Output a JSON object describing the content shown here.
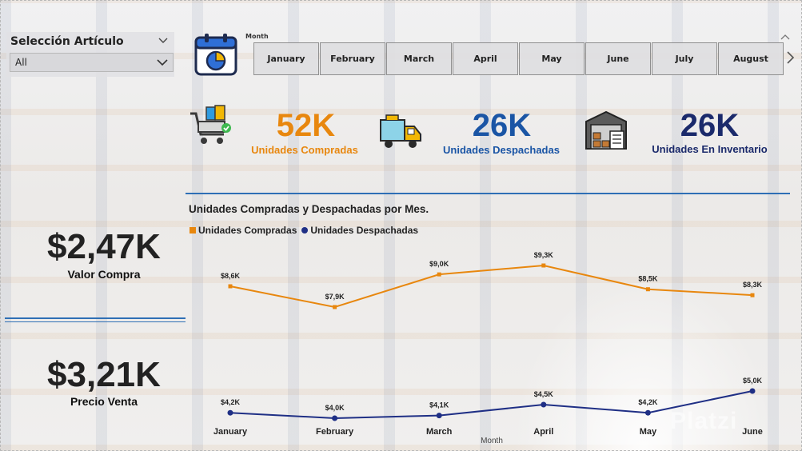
{
  "slicer": {
    "title": "Selección Artículo",
    "selected": "All"
  },
  "month_slicer": {
    "label": "Month",
    "months": [
      "January",
      "February",
      "March",
      "April",
      "May",
      "June",
      "July",
      "August"
    ]
  },
  "kpis": [
    {
      "value": "52K",
      "label": "Unidades Compradas",
      "color": "#e8870e",
      "icon": "shopping-cart-icon"
    },
    {
      "value": "26K",
      "label": "Unidades Despachadas",
      "color": "#1a55a5",
      "icon": "delivery-truck-icon"
    },
    {
      "value": "26K",
      "label": "Unidades En Inventario",
      "color": "#1b2a6b",
      "icon": "warehouse-inventory-icon"
    }
  ],
  "cards": {
    "valor_compra": {
      "value": "$2,47K",
      "label": "Valor Compra"
    },
    "precio_venta": {
      "value": "$3,21K",
      "label": "Precio Venta"
    }
  },
  "watermark": "Platzi",
  "chart_data": {
    "type": "line",
    "title": "Unidades Compradas y Despachadas por Mes.",
    "xlabel": "Month",
    "ylabel": "",
    "legend_position": "top-left",
    "grid": false,
    "categories": [
      "January",
      "February",
      "March",
      "April",
      "May",
      "June"
    ],
    "series": [
      {
        "name": "Unidades Compradas",
        "color": "#e8870e",
        "marker": "square",
        "values": [
          8600,
          7900,
          9000,
          9300,
          8500,
          8300
        ],
        "labels": [
          "$8,6K",
          "$7,9K",
          "$9,0K",
          "$9,3K",
          "$8,5K",
          "$8,3K"
        ]
      },
      {
        "name": "Unidades Despachadas",
        "color": "#1f2f85",
        "marker": "circle",
        "values": [
          4200,
          4000,
          4100,
          4500,
          4200,
          5000
        ],
        "labels": [
          "$4,2K",
          "$4,0K",
          "$4,1K",
          "$4,5K",
          "$4,2K",
          "$5,0K"
        ]
      }
    ]
  }
}
